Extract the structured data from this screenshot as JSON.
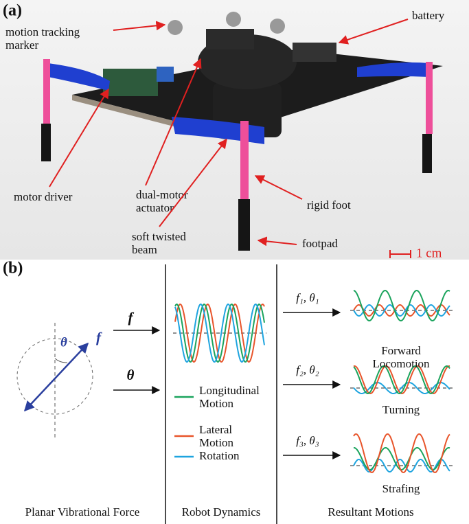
{
  "panel_a": {
    "label": "(a)",
    "annotations": {
      "marker": [
        "motion tracking",
        "marker"
      ],
      "battery": [
        "battery"
      ],
      "motor_driver": [
        "motor driver"
      ],
      "actuator": [
        "dual-motor",
        "actuator"
      ],
      "rigid_foot": [
        "rigid foot"
      ],
      "beam": [
        "soft twisted",
        "beam"
      ],
      "footpad": [
        "footpad"
      ]
    },
    "scale_bar": "1 cm"
  },
  "panel_b": {
    "label": "(b)",
    "force": {
      "f": "f",
      "theta": "θ"
    },
    "inputs": [
      "f",
      "θ"
    ],
    "legend": [
      [
        "Longitudinal",
        "Motion"
      ],
      [
        "Lateral",
        "Motion"
      ],
      [
        "Rotation"
      ]
    ],
    "motions": [
      {
        "params": "f₁, θ₁",
        "name": [
          "Forward",
          "Locomotion"
        ]
      },
      {
        "params": "f₂, θ₂",
        "name": [
          "Turning"
        ]
      },
      {
        "params": "f₃, θ₃",
        "name": [
          "Strafing"
        ]
      }
    ],
    "captions": [
      "Planar Vibrational Force",
      "Robot Dynamics",
      "Resultant Motions"
    ]
  }
}
